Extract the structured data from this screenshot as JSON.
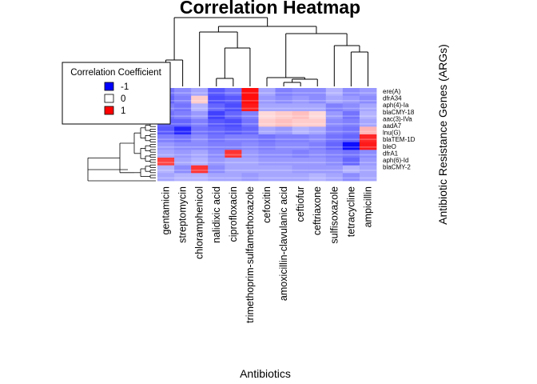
{
  "chart_data": {
    "type": "heatmap",
    "title": "Correlation Heatmap",
    "xlabel": "Antibiotics",
    "ylabel": "Antibiotic Resistance Genes (ARGs)",
    "columns": [
      "gentamicin",
      "streptomycin",
      "chloramphenicol",
      "nalidixic acid",
      "ciprofloxacin",
      "trimethoprim-sulfamethoxazole",
      "cefoxitin",
      "amoxicillin-clavulanic acid",
      "ceftiofur",
      "ceftriaxone",
      "sulfisoxazole",
      "tetracycline",
      "ampicillin"
    ],
    "row_labels": [
      "ere(A)",
      "dfrA34",
      "aph(4)-Ia",
      "blaCMY-18",
      "aac(3)-IVa",
      "aadA7",
      "lnu(G)",
      "blaTEM-1D",
      "bleO",
      "dfrA1",
      "aph(6)-Id",
      "blaCMY-2"
    ],
    "value_range": [
      -1,
      1
    ],
    "colors": {
      "low": "#0000ff",
      "mid": "#ffffff",
      "high": "#ff0000"
    },
    "legend": {
      "title": "Correlation Coefficient",
      "position": "top-left",
      "entries": [
        {
          "label": "-1",
          "color": "#0000ff"
        },
        {
          "label": "0",
          "color": "#ffffff"
        },
        {
          "label": "1",
          "color": "#ff0000"
        }
      ]
    },
    "column_dendrogram": true,
    "row_dendrogram": true,
    "values": [
      [
        -0.55,
        -0.45,
        -0.35,
        -0.65,
        -0.55,
        0.95,
        -0.35,
        -0.5,
        -0.45,
        -0.45,
        -0.3,
        -0.45,
        -0.4
      ],
      [
        -0.6,
        -0.5,
        0.2,
        -0.7,
        -0.65,
        0.95,
        -0.4,
        -0.45,
        -0.4,
        -0.45,
        -0.35,
        -0.4,
        -0.45
      ],
      [
        -0.5,
        -0.55,
        -0.3,
        -0.6,
        -0.7,
        0.9,
        -0.35,
        -0.35,
        -0.35,
        -0.35,
        -0.5,
        -0.45,
        -0.35
      ],
      [
        -0.55,
        -0.5,
        -0.4,
        -0.75,
        -0.6,
        -0.5,
        0.15,
        0.2,
        0.25,
        0.15,
        -0.4,
        -0.55,
        -0.3
      ],
      [
        -0.6,
        -0.6,
        -0.5,
        -0.65,
        -0.7,
        -0.55,
        0.2,
        0.25,
        0.2,
        0.2,
        -0.45,
        -0.5,
        -0.35
      ],
      [
        -0.65,
        -0.85,
        -0.55,
        -0.6,
        -0.65,
        -0.6,
        -0.35,
        -0.4,
        -0.3,
        -0.35,
        -0.5,
        -0.55,
        0.3
      ],
      [
        -0.5,
        -0.55,
        -0.45,
        -0.55,
        -0.5,
        -0.5,
        -0.55,
        -0.5,
        -0.5,
        -0.45,
        -0.55,
        -0.6,
        0.85
      ],
      [
        -0.4,
        -0.45,
        -0.45,
        -0.5,
        -0.5,
        -0.45,
        -0.5,
        -0.45,
        -0.45,
        -0.5,
        -0.6,
        -0.95,
        0.9
      ],
      [
        -0.35,
        -0.4,
        -0.35,
        -0.45,
        0.8,
        -0.4,
        -0.45,
        -0.45,
        -0.5,
        -0.45,
        -0.5,
        -0.55,
        -0.45
      ],
      [
        0.75,
        -0.35,
        -0.3,
        -0.4,
        -0.35,
        -0.35,
        -0.4,
        -0.4,
        -0.4,
        -0.4,
        -0.45,
        -0.6,
        -0.4
      ],
      [
        -0.3,
        -0.45,
        0.8,
        -0.45,
        -0.35,
        -0.35,
        -0.35,
        -0.35,
        -0.4,
        -0.4,
        -0.4,
        -0.3,
        -0.35
      ],
      [
        -0.35,
        -0.3,
        -0.3,
        -0.35,
        -0.35,
        -0.4,
        -0.35,
        -0.35,
        -0.35,
        -0.3,
        -0.35,
        -0.45,
        -0.35
      ]
    ]
  }
}
